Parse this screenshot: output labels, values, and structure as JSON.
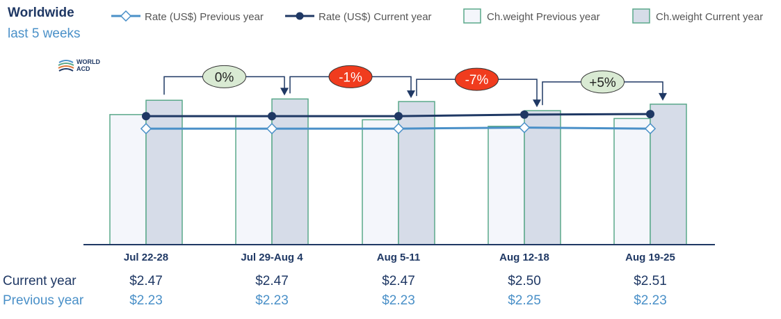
{
  "header": {
    "title": "Worldwide",
    "subtitle": "last 5 weeks"
  },
  "logo": {
    "line1": "WORLD",
    "line2": "ACD"
  },
  "legend": [
    {
      "label": "Rate (US$) Previous year",
      "kind": "line-open"
    },
    {
      "label": "Rate (US$) Current year",
      "kind": "line-filled"
    },
    {
      "label": "Ch.weight Previous year",
      "kind": "bar-light"
    },
    {
      "label": "Ch.weight Current year",
      "kind": "bar-dark"
    }
  ],
  "colors": {
    "bar_prev_fill": "#f4f6fb",
    "bar_cur_fill": "#d6dce8",
    "bar_stroke": "#5aa88a",
    "rate_cur": "#1f3864",
    "rate_prev": "#4a90c8",
    "badge_green": "#d9ead3",
    "badge_red": "#f03c1e",
    "axis": "#1f3864"
  },
  "chart_data": {
    "type": "bar",
    "categories": [
      "Jul 22-28",
      "Jul 29-Aug 4",
      "Aug 5-11",
      "Aug 12-18",
      "Aug 19-25"
    ],
    "series": [
      {
        "name": "Ch.weight Previous year",
        "type": "bar",
        "values": [
          100,
          99,
          96,
          91,
          97
        ]
      },
      {
        "name": "Ch.weight Current year",
        "type": "bar",
        "values": [
          111,
          112,
          110,
          103,
          108
        ]
      },
      {
        "name": "Rate (US$) Previous year",
        "type": "line",
        "values": [
          2.23,
          2.23,
          2.23,
          2.25,
          2.23
        ]
      },
      {
        "name": "Rate (US$) Current year",
        "type": "line",
        "values": [
          2.47,
          2.47,
          2.47,
          2.5,
          2.51
        ]
      }
    ],
    "changes": [
      {
        "label": "0%",
        "color": "green"
      },
      {
        "label": "-1%",
        "color": "red"
      },
      {
        "label": "-7%",
        "color": "red"
      },
      {
        "label": "+5%",
        "color": "green"
      }
    ],
    "rate_rows": {
      "current_label": "Current year",
      "previous_label": "Previous year",
      "current": [
        "$2.47",
        "$2.47",
        "$2.47",
        "$2.50",
        "$2.51"
      ],
      "previous": [
        "$2.23",
        "$2.23",
        "$2.23",
        "$2.25",
        "$2.23"
      ]
    }
  }
}
